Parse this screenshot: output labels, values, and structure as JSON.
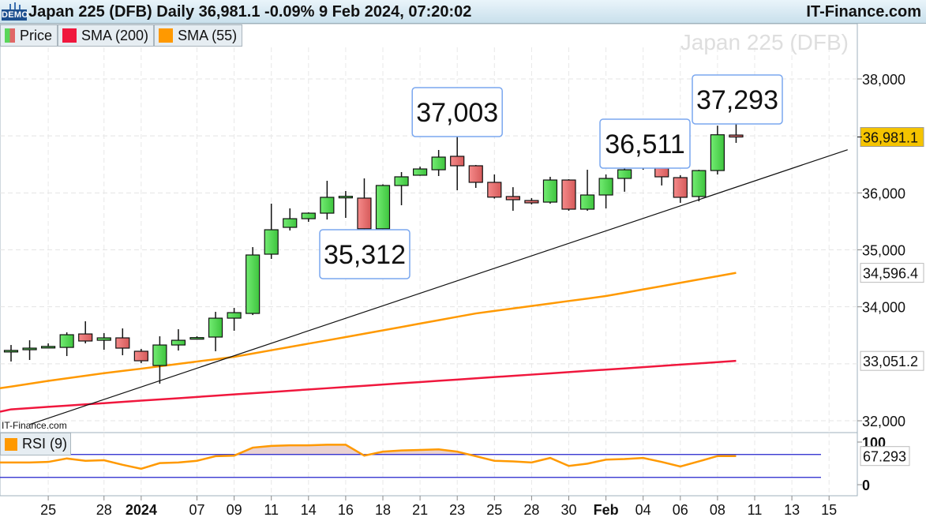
{
  "header": {
    "title": "Japan 225 (DFB) Daily 36,981.1 -0.09% 9 Feb 2024, 07:20:02",
    "brand": "IT-Finance.com",
    "demo_badge": "DEMO"
  },
  "legend": [
    {
      "label": "Price",
      "color": "#5ad65a",
      "color2": "#e06666"
    },
    {
      "label": "SMA (200)",
      "color": "#f0173d"
    },
    {
      "label": "SMA (55)",
      "color": "#ff9900"
    }
  ],
  "rsi_legend": {
    "label": "RSI (9)",
    "color": "#ff9900"
  },
  "watermark": "Japan 225 (DFB)",
  "source_note": "IT-Finance.com",
  "chart_data": {
    "type": "candlestick",
    "instrument": "Japan 225 (DFB)",
    "ylim": [
      31800,
      38700
    ],
    "y_ticks": [
      "38,000",
      "36,000",
      "35,000",
      "34,000",
      "32,000"
    ],
    "y_tick_values": [
      38000,
      36000,
      35000,
      34000,
      32000
    ],
    "x_ticks": [
      {
        "label": "25",
        "candle": 2
      },
      {
        "label": "28",
        "candle": 5
      },
      {
        "label": "2024",
        "candle": 7,
        "bold": true
      },
      {
        "label": "07",
        "candle": 10
      },
      {
        "label": "09",
        "candle": 12
      },
      {
        "label": "11",
        "candle": 14
      },
      {
        "label": "14",
        "candle": 16
      },
      {
        "label": "16",
        "candle": 18
      },
      {
        "label": "18",
        "candle": 20
      },
      {
        "label": "21",
        "candle": 22
      },
      {
        "label": "23",
        "candle": 24
      },
      {
        "label": "25",
        "candle": 26
      },
      {
        "label": "28",
        "candle": 28
      },
      {
        "label": "30",
        "candle": 30
      },
      {
        "label": "Feb",
        "candle": 32,
        "bold": true
      },
      {
        "label": "04",
        "candle": 34
      },
      {
        "label": "06",
        "candle": 36
      },
      {
        "label": "08",
        "candle": 38
      },
      {
        "label": "11",
        "candle": 40
      },
      {
        "label": "13",
        "candle": 42
      },
      {
        "label": "15",
        "candle": 44
      }
    ],
    "candles": [
      [
        33230,
        33330,
        33040,
        33235
      ],
      [
        33247,
        33413,
        33067,
        33275
      ],
      [
        33300,
        33358,
        33275,
        33305
      ],
      [
        33288,
        33552,
        33136,
        33510
      ],
      [
        33524,
        33746,
        33358,
        33400
      ],
      [
        33413,
        33538,
        33247,
        33455
      ],
      [
        33455,
        33621,
        33150,
        33275
      ],
      [
        33220,
        33261,
        33011,
        33053
      ],
      [
        32970,
        33483,
        32651,
        33330
      ],
      [
        33330,
        33607,
        33233,
        33413
      ],
      [
        33440,
        33483,
        33427,
        33460
      ],
      [
        33469,
        33912,
        33220,
        33801
      ],
      [
        33801,
        33981,
        33580,
        33898
      ],
      [
        33884,
        35048,
        33856,
        34910
      ],
      [
        34924,
        35811,
        34841,
        35353
      ],
      [
        35395,
        35728,
        35340,
        35547
      ],
      [
        35547,
        35658,
        35492,
        35644
      ],
      [
        35644,
        36212,
        35533,
        35922
      ],
      [
        35930,
        36032,
        35561,
        35940
      ],
      [
        35908,
        36254,
        35312,
        35370
      ],
      [
        35370,
        36150,
        35350,
        36130
      ],
      [
        36129,
        36365,
        35783,
        36282
      ],
      [
        36310,
        36460,
        36300,
        36420
      ],
      [
        36406,
        36753,
        36296,
        36628
      ],
      [
        36642,
        37003,
        36046,
        36476
      ],
      [
        36476,
        36490,
        36088,
        36185
      ],
      [
        36185,
        36323,
        35900,
        35925
      ],
      [
        35936,
        36100,
        35686,
        35880
      ],
      [
        35866,
        35908,
        35797,
        35825
      ],
      [
        35838,
        36282,
        35811,
        36226
      ],
      [
        36226,
        36240,
        35686,
        35714
      ],
      [
        35714,
        36406,
        35686,
        35963
      ],
      [
        35963,
        36323,
        35727,
        36254
      ],
      [
        36254,
        36462,
        36020,
        36406
      ],
      [
        36476,
        36511,
        36406,
        36503
      ],
      [
        36476,
        36490,
        36130,
        36282
      ],
      [
        36268,
        36310,
        35825,
        35922
      ],
      [
        35936,
        36406,
        35852,
        36392
      ],
      [
        36392,
        37180,
        36323,
        37020
      ],
      [
        37015,
        37293,
        36878,
        36981.1
      ]
    ],
    "candle_fields": [
      "open",
      "high",
      "low",
      "close"
    ],
    "colors": {
      "up": "#5ad65a",
      "down": "#e06666",
      "sma200": "#f0173d",
      "sma55": "#ff9900",
      "rsi": "#ff9900",
      "rsi_levels": "#2222cc",
      "last_price_tag": "#f5c400"
    },
    "sma200": [
      32200,
      32222,
      32244,
      32265,
      32287,
      32309,
      32331,
      32353,
      32374,
      32396,
      32418,
      32440,
      32462,
      32483,
      32505,
      32527,
      32549,
      32571,
      32592,
      32614,
      32636,
      32658,
      32680,
      32701,
      32723,
      32745,
      32767,
      32789,
      32810,
      32832,
      32854,
      32876,
      32898,
      32919,
      32941,
      32963,
      32985,
      33007,
      33029,
      33051.2
    ],
    "sma55": [
      32600,
      32650,
      32700,
      32745,
      32790,
      32835,
      32875,
      32914,
      32956,
      32998,
      33040,
      33080,
      33122,
      33180,
      33238,
      33296,
      33354,
      33411,
      33469,
      33528,
      33587,
      33646,
      33706,
      33765,
      33825,
      33884,
      33928,
      33971,
      34015,
      34058,
      34102,
      34145,
      34189,
      34247,
      34305,
      34363,
      34422,
      34480,
      34538,
      34596.4
    ],
    "trendline": [
      {
        "candle": 1,
        "value": 31936
      },
      {
        "candle": 45,
        "value": 36758
      }
    ],
    "price_tags": [
      {
        "label": "36,981.1",
        "value": 36981.1,
        "kind": "last"
      },
      {
        "label": "34,596.4",
        "value": 34596.4,
        "kind": "sma55"
      },
      {
        "label": "33,051.2",
        "value": 33051.2,
        "kind": "sma200"
      }
    ],
    "callouts": [
      {
        "label": "37,003",
        "candle": 24,
        "value": 37003,
        "position": "above"
      },
      {
        "label": "35,312",
        "candle": 19,
        "value": 35312,
        "position": "below"
      },
      {
        "label": "36,511",
        "candle": 34,
        "value": 36511,
        "position": "above"
      },
      {
        "label": "37,293",
        "candle": 39,
        "value": 37293,
        "position": "above"
      }
    ],
    "rsi": {
      "period": 9,
      "ylim": [
        0,
        100
      ],
      "levels": [
        70,
        30
      ],
      "y_ticks": [
        "100",
        "0"
      ],
      "y_tick_values": [
        100,
        0
      ],
      "last_label": "67.293",
      "values": [
        56,
        56,
        57,
        63,
        59,
        60,
        52,
        45,
        55,
        56,
        59,
        67,
        68,
        82,
        85,
        86,
        86,
        87,
        87,
        68,
        75,
        77,
        78,
        79,
        75,
        67,
        59,
        58,
        56,
        64,
        50,
        54,
        61,
        62,
        64,
        57,
        49,
        58,
        67.3,
        67.293
      ]
    }
  }
}
